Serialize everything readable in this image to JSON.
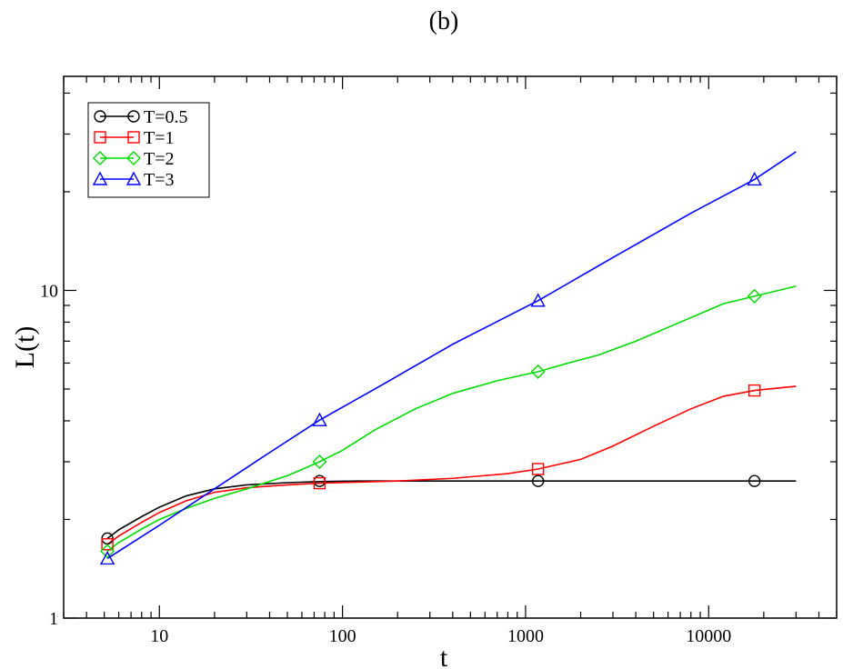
{
  "panel_label": "(b)",
  "chart_data": {
    "type": "line",
    "title": "",
    "xlabel": "t",
    "ylabel": "L(t)",
    "xscale": "log",
    "yscale": "log",
    "xlim": [
      3,
      50000
    ],
    "ylim": [
      1,
      45
    ],
    "xticks": [
      {
        "value": 10,
        "label": "10"
      },
      {
        "value": 100,
        "label": "100"
      },
      {
        "value": 1000,
        "label": "1000"
      },
      {
        "value": 10000,
        "label": "10000"
      }
    ],
    "yticks": [
      {
        "value": 1,
        "label": "1"
      },
      {
        "value": 10,
        "label": "10"
      }
    ],
    "grid": false,
    "legend": "top-left",
    "series": [
      {
        "name": "T=0.5",
        "color": "#000000",
        "marker": "circle",
        "x": [
          5.2,
          6,
          8,
          10,
          14,
          20,
          30,
          50,
          75,
          120,
          300,
          1000,
          1170,
          5000,
          17800,
          30000
        ],
        "y": [
          1.75,
          1.86,
          2.04,
          2.18,
          2.36,
          2.48,
          2.55,
          2.59,
          2.61,
          2.62,
          2.62,
          2.62,
          2.62,
          2.62,
          2.62,
          2.62
        ],
        "markers_x": [
          5.2,
          75,
          1170,
          17800
        ],
        "markers_y": [
          1.75,
          2.62,
          2.62,
          2.62
        ]
      },
      {
        "name": "T=1",
        "color": "#ff0000",
        "marker": "square",
        "x": [
          5.2,
          6,
          8,
          10,
          14,
          20,
          30,
          50,
          75,
          120,
          200,
          400,
          800,
          1170,
          2000,
          3000,
          5000,
          8000,
          12000,
          17800,
          30000
        ],
        "y": [
          1.68,
          1.78,
          1.96,
          2.1,
          2.28,
          2.42,
          2.5,
          2.55,
          2.58,
          2.6,
          2.62,
          2.67,
          2.76,
          2.85,
          3.05,
          3.35,
          3.85,
          4.35,
          4.75,
          4.95,
          5.1
        ],
        "markers_x": [
          5.2,
          75,
          1170,
          17800
        ],
        "markers_y": [
          1.68,
          2.58,
          2.85,
          4.95
        ]
      },
      {
        "name": "T=2",
        "color": "#00dd00",
        "marker": "diamond",
        "x": [
          5.2,
          6,
          8,
          10,
          14,
          20,
          30,
          50,
          75,
          100,
          150,
          250,
          400,
          700,
          1170,
          1800,
          2500,
          4000,
          7000,
          12000,
          17800,
          30000
        ],
        "y": [
          1.6,
          1.7,
          1.87,
          2.0,
          2.16,
          2.32,
          2.48,
          2.72,
          3.0,
          3.25,
          3.75,
          4.35,
          4.85,
          5.3,
          5.65,
          6.05,
          6.35,
          7.0,
          8.0,
          9.1,
          9.6,
          10.3
        ],
        "markers_x": [
          5.2,
          75,
          1170,
          17800
        ],
        "markers_y": [
          1.6,
          3.0,
          5.65,
          9.6
        ]
      },
      {
        "name": "T=3",
        "color": "#0000ff",
        "marker": "triangle",
        "x": [
          5.2,
          10,
          20,
          40,
          75,
          150,
          400,
          1170,
          3000,
          8000,
          17800,
          30000
        ],
        "y": [
          1.52,
          1.92,
          2.48,
          3.2,
          4.02,
          5.0,
          6.85,
          9.3,
          12.6,
          17.2,
          21.8,
          26.5
        ],
        "markers_x": [
          5.2,
          75,
          1170,
          17800
        ],
        "markers_y": [
          1.52,
          4.02,
          9.3,
          21.8
        ]
      }
    ]
  }
}
